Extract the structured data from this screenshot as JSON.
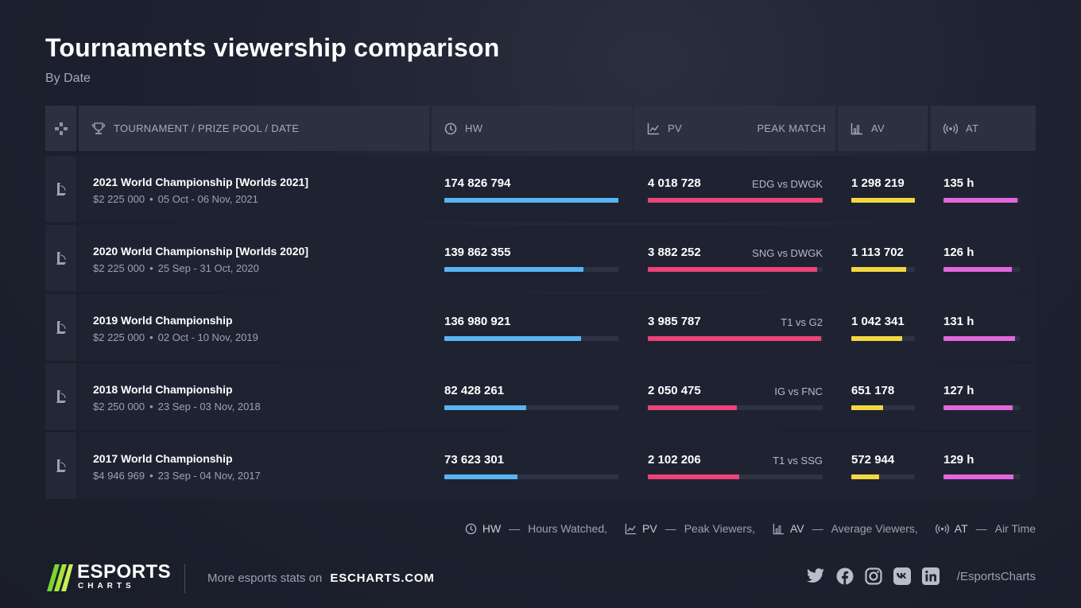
{
  "title": "Tournaments viewership comparison",
  "subtitle": "By Date",
  "headers": {
    "tournament": "TOURNAMENT / PRIZE POOL / DATE",
    "hw": "HW",
    "pv": "PV",
    "peak_match": "PEAK MATCH",
    "av": "AV",
    "at": "AT"
  },
  "colors": {
    "hw": "#5ab4f0",
    "pv": "#ec4379",
    "av": "#f4d740",
    "at": "#e466dc"
  },
  "chart_data": {
    "type": "table",
    "columns": [
      "TOURNAMENT / PRIZE POOL / DATE",
      "HW",
      "PV",
      "PEAK MATCH",
      "AV",
      "AT"
    ],
    "rows": [
      {
        "tournament": "2021 World Championship [Worlds 2021]",
        "prize": "$2 225 000",
        "dates": "05 Oct - 06 Nov, 2021",
        "hw": 174826794,
        "hw_label": "174 826 794",
        "pv": 4018728,
        "pv_label": "4 018 728",
        "match": "EDG vs DWGK",
        "av": 1298219,
        "av_label": "1 298 219",
        "at": 135,
        "at_label": "135 h"
      },
      {
        "tournament": "2020 World Championship [Worlds 2020]",
        "prize": "$2 225 000",
        "dates": "25 Sep - 31 Oct, 2020",
        "hw": 139862355,
        "hw_label": "139 862 355",
        "pv": 3882252,
        "pv_label": "3 882 252",
        "match": "SNG vs DWGK",
        "av": 1113702,
        "av_label": "1 113 702",
        "at": 126,
        "at_label": "126 h"
      },
      {
        "tournament": "2019 World Championship",
        "prize": "$2 225 000",
        "dates": "02 Oct - 10 Nov, 2019",
        "hw": 136980921,
        "hw_label": "136 980 921",
        "pv": 3985787,
        "pv_label": "3 985 787",
        "match": "T1 vs G2",
        "av": 1042341,
        "av_label": "1 042 341",
        "at": 131,
        "at_label": "131 h"
      },
      {
        "tournament": "2018 World Championship",
        "prize": "$2 250 000",
        "dates": "23 Sep - 03 Nov, 2018",
        "hw": 82428261,
        "hw_label": "82 428 261",
        "pv": 2050475,
        "pv_label": "2 050 475",
        "match": "IG vs FNC",
        "av": 651178,
        "av_label": "651 178",
        "at": 127,
        "at_label": "127 h"
      },
      {
        "tournament": "2017 World Championship",
        "prize": "$4 946 969",
        "dates": "23 Sep - 04 Nov, 2017",
        "hw": 73623301,
        "hw_label": "73 623 301",
        "pv": 2102206,
        "pv_label": "2 102 206",
        "match": "T1 vs SSG",
        "av": 572944,
        "av_label": "572 944",
        "at": 129,
        "at_label": "129 h"
      }
    ]
  },
  "legend": [
    {
      "abbr": "HW",
      "desc": "Hours Watched,",
      "icon": "clock-icon"
    },
    {
      "abbr": "PV",
      "desc": "Peak Viewers,",
      "icon": "chart-line-icon"
    },
    {
      "abbr": "AV",
      "desc": "Average Viewers,",
      "icon": "bar-chart-icon"
    },
    {
      "abbr": "AT",
      "desc": "Air Time",
      "icon": "broadcast-icon"
    }
  ],
  "footer": {
    "logo_line1": "ESPORTS",
    "logo_line2": "CHARTS",
    "more_text": "More esports stats on",
    "site": "ESCHARTS.COM",
    "handle": "/EsportsCharts",
    "social_icons": [
      "twitter-icon",
      "facebook-icon",
      "instagram-icon",
      "vk-icon",
      "linkedin-icon"
    ]
  }
}
